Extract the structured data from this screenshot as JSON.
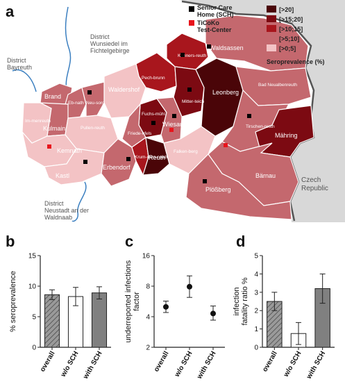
{
  "panel_a": {
    "letter": "a",
    "map_labels": {
      "district_wunsiedel": [
        "District",
        "Wunsiedel im",
        "Fichtelgebirge"
      ],
      "district_bayreuth": [
        "District",
        "Bayreuth"
      ],
      "district_neustadt": [
        "District",
        "Neustadt an der",
        "Waldnaab"
      ],
      "czech_republic": [
        "Czech",
        "Republic"
      ],
      "towns": [
        "Waldsassen",
        "Konners-reuth",
        "Pech-brunn",
        "Mitter-teich",
        "Leonberg",
        "Bad Neualbenreuth",
        "Waldershof",
        "Brand",
        "Eb-nath",
        "Neu-sorg",
        "Im-menreuth",
        "Kulmain",
        "Pullen-reuth",
        "Fuchs-mühl",
        "Friede-nfels",
        "Wiesau",
        "Tirschen-reuth",
        "Mähring",
        "Kemnath",
        "Krum-men-naab",
        "Reuth",
        "Falken-berg",
        "Erbendorf",
        "Kastl",
        "Bärnau",
        "Plößberg"
      ]
    },
    "legend": {
      "sch_label": "Senior Care Home (SCH)",
      "sch_lines": [
        "Senior Care",
        "Home (SCH)"
      ],
      "ticoko_lines": [
        "TiCoKo",
        "Test-Center"
      ],
      "sch_color": "#000000",
      "ticoko_color": "#e8141c",
      "classes": [
        {
          "label": "[>20]",
          "color": "#4a0508"
        },
        {
          "label": "[>15;20]",
          "color": "#7c0a12"
        },
        {
          "label": "[>10;15]",
          "color": "#a8161d"
        },
        {
          "label": "[>5;10]",
          "color": "#c4686e"
        },
        {
          "label": "[>0;5]",
          "color": "#f3c3c5"
        }
      ],
      "title": "Seroprevalence (%)"
    }
  },
  "panel_b": {
    "letter": "b"
  },
  "panel_c": {
    "letter": "c"
  },
  "panel_d": {
    "letter": "d"
  },
  "chart_data": [
    {
      "panel": "b",
      "type": "bar",
      "categories": [
        "overall",
        "w/o SCH",
        "with SCH"
      ],
      "values": [
        8.6,
        8.3,
        8.9
      ],
      "errors": [
        0.8,
        1.5,
        1.0
      ],
      "fills": [
        "hatch",
        "#ffffff",
        "#808080"
      ],
      "ylabel": "% seroprevalence",
      "ylim": [
        0,
        15
      ],
      "yticks": [
        0,
        5,
        10,
        15
      ]
    },
    {
      "panel": "c",
      "type": "scatter",
      "categories": [
        "overall",
        "w/o SCH",
        "with SCH"
      ],
      "values": [
        5.0,
        7.9,
        4.3
      ],
      "errors_low": [
        0.6,
        1.7,
        0.6
      ],
      "errors_high": [
        0.7,
        2.2,
        0.8
      ],
      "ylabel_lines": [
        "underreported infections",
        "factor"
      ],
      "scale": "log2",
      "ylim": [
        2,
        16
      ],
      "yticks": [
        2,
        4,
        8,
        16
      ]
    },
    {
      "panel": "d",
      "type": "bar",
      "categories": [
        "overall",
        "w/o SCH",
        "with SCH"
      ],
      "values": [
        2.5,
        0.75,
        3.2
      ],
      "errors": [
        0.5,
        0.6,
        0.8
      ],
      "fills": [
        "hatch",
        "#ffffff",
        "#808080"
      ],
      "ylabel_lines": [
        "infection",
        "fatality ratio %"
      ],
      "ylim": [
        0,
        5
      ],
      "yticks": [
        0,
        1,
        2,
        3,
        4,
        5
      ]
    }
  ]
}
